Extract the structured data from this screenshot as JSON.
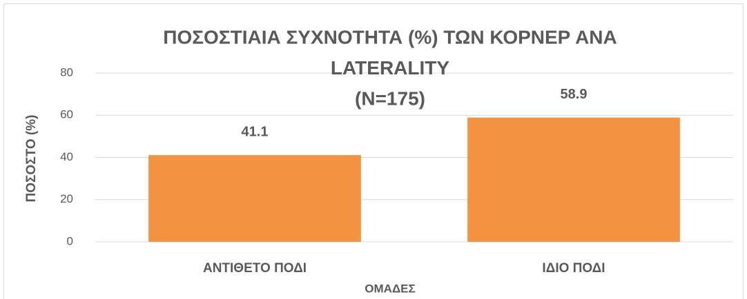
{
  "chart_data": {
    "type": "bar",
    "title": [
      "ΠΟΣΟΣΤΙΑΙΑ ΣΥΧΝΟΤΗΤΑ (%) ΤΩΝ ΚΟΡΝΕΡ ΑΝΑ",
      "LATERALITY",
      "(N=175)"
    ],
    "categories": [
      "ΑΝΤΙΘΕΤΟ ΠΟΔΙ",
      "ΙΔΙΟ ΠΟΔΙ"
    ],
    "values": [
      41.1,
      58.9
    ],
    "color": "#f39342",
    "x_label": "ΟΜΑΔΕΣ",
    "y_label": "ΠΟΣΟΣΤΟ (%)",
    "ylim": [
      0,
      80
    ],
    "yticks": [
      0,
      20,
      40,
      60,
      80
    ],
    "grid": true
  }
}
